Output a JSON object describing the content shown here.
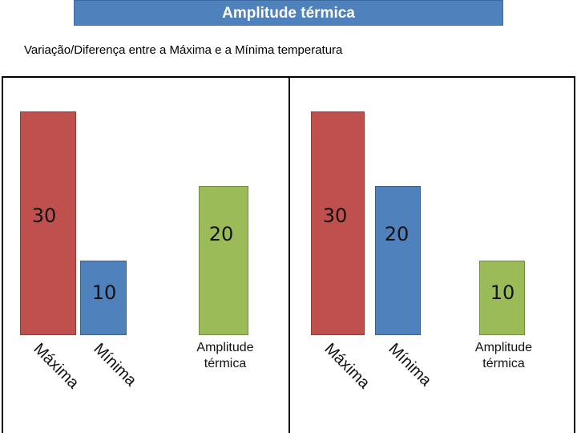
{
  "header": {
    "title": "Amplitude térmica"
  },
  "subtitle": "Variação/Diferença entre a Máxima e a Mínima temperatura",
  "panels": [
    {
      "bars": [
        {
          "label": "Máxima",
          "value": 30,
          "color": "#c0504d"
        },
        {
          "label": "Mínima",
          "value": 10,
          "color": "#4f81bd"
        },
        {
          "label": "Amplitude térmica",
          "value": 20,
          "color": "#9bbb59"
        }
      ]
    },
    {
      "bars": [
        {
          "label": "Máxima",
          "value": 30,
          "color": "#c0504d"
        },
        {
          "label": "Mínima",
          "value": 20,
          "color": "#4f81bd"
        },
        {
          "label": "Amplitude térmica",
          "value": 10,
          "color": "#9bbb59"
        }
      ]
    }
  ]
}
